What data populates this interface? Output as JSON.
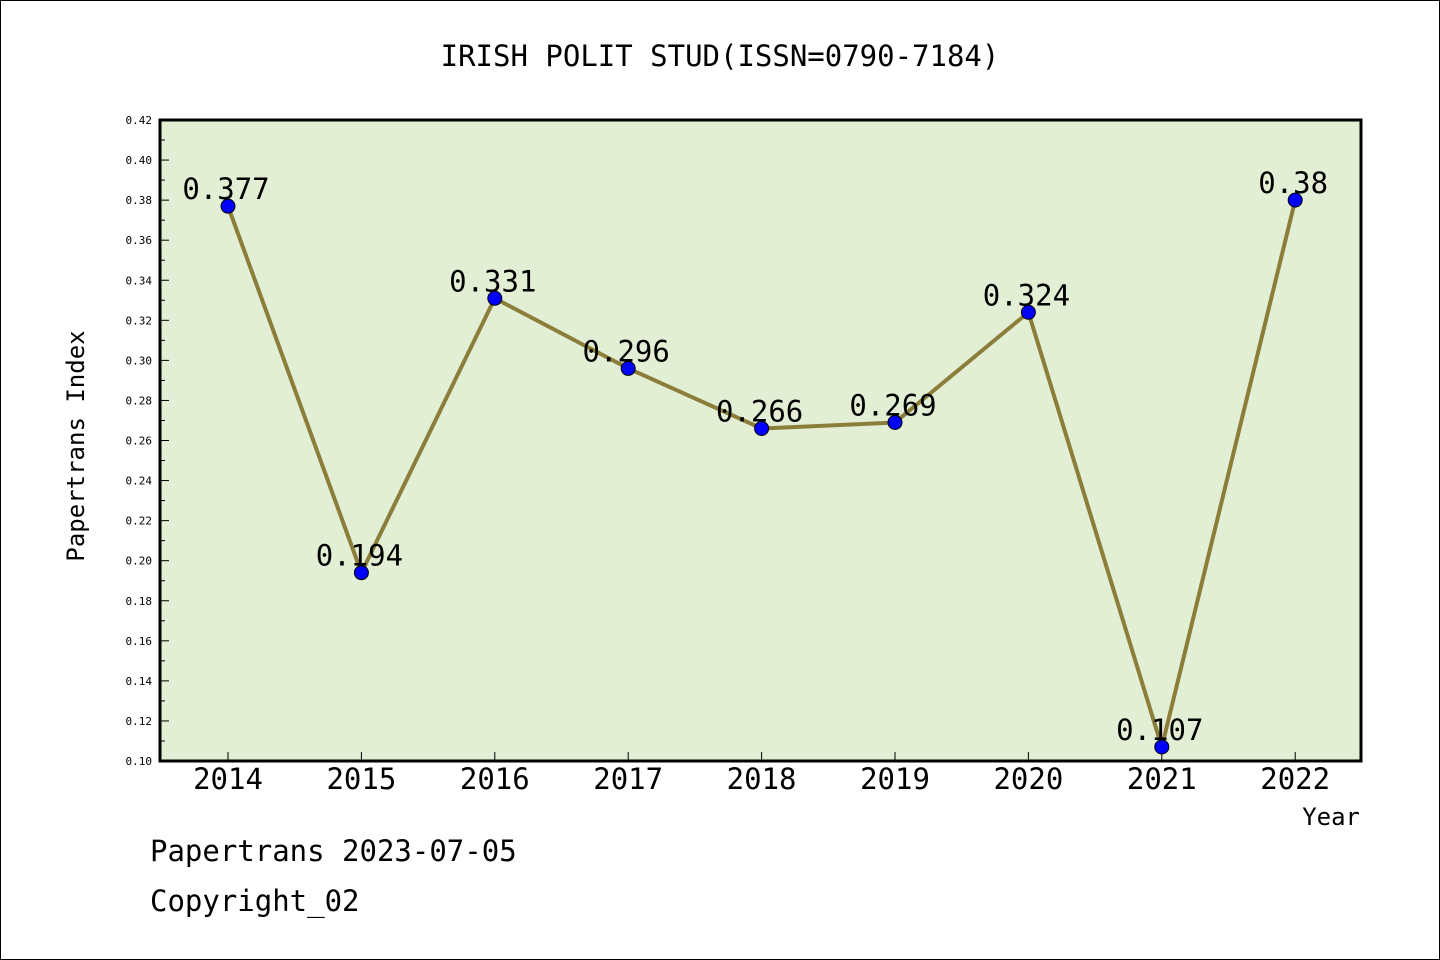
{
  "chart_data": {
    "type": "line",
    "title": "IRISH POLIT STUD(ISSN=0790-7184)",
    "xlabel": "Year",
    "ylabel": "Papertrans Index",
    "categories": [
      "2014",
      "2015",
      "2016",
      "2017",
      "2018",
      "2019",
      "2020",
      "2021",
      "2022"
    ],
    "values": [
      0.377,
      0.194,
      0.331,
      0.296,
      0.266,
      0.269,
      0.324,
      0.107,
      0.38
    ],
    "data_labels": [
      "0.377",
      "0.194",
      "0.331",
      "0.296",
      "0.266",
      "0.269",
      "0.324",
      "0.107",
      "0.38"
    ],
    "ylim": [
      0.1,
      0.42
    ],
    "yticks": [
      "0.10",
      "0.12",
      "0.14",
      "0.16",
      "0.18",
      "0.20",
      "0.22",
      "0.24",
      "0.26",
      "0.28",
      "0.30",
      "0.32",
      "0.34",
      "0.36",
      "0.38",
      "0.40",
      "0.42"
    ],
    "grid": false,
    "colors": {
      "plot_background": "#e2efd5",
      "line": "#8b7d3a",
      "marker": "#0000ff"
    }
  },
  "footer": {
    "source": "Papertrans 2023-07-05",
    "copyright": "Copyright_02"
  }
}
